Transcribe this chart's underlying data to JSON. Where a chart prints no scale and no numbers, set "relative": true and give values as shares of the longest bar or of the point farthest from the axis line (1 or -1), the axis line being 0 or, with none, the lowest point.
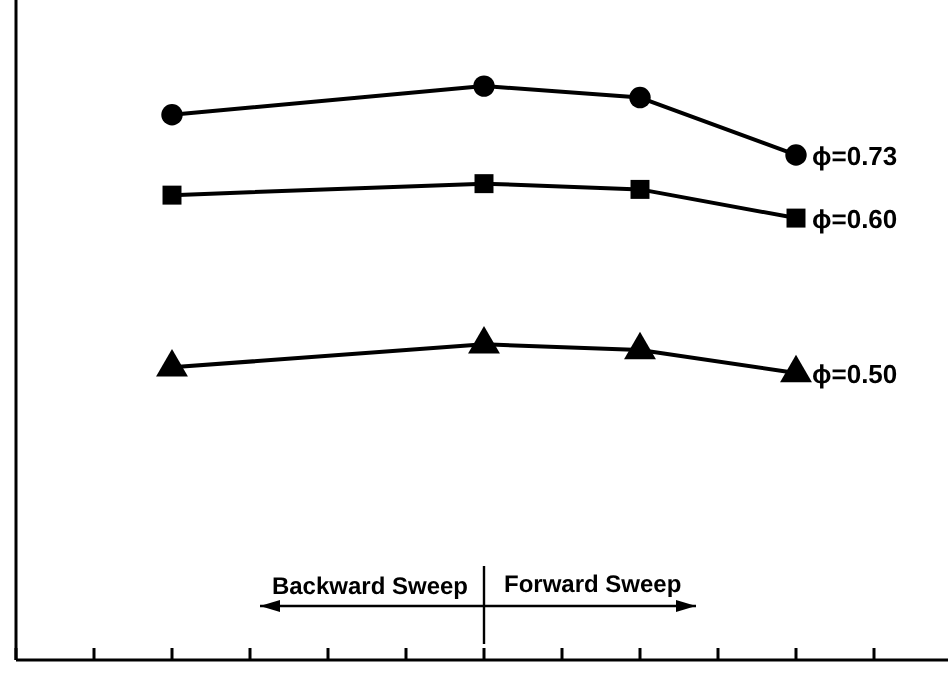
{
  "chart_data": {
    "type": "line",
    "relative": true,
    "categories": [
      null,
      null,
      null,
      null,
      null,
      null,
      null,
      null,
      null,
      null,
      null,
      null,
      null
    ],
    "series": [
      {
        "name": "ϕ=0.73",
        "color": "#000000",
        "marker": "circle",
        "values": [
          null,
          null,
          0.95,
          null,
          null,
          null,
          1,
          null,
          0.98,
          null,
          0.88,
          null,
          null
        ]
      },
      {
        "name": "ϕ=0.60",
        "color": "#000000",
        "marker": "square",
        "values": [
          null,
          null,
          0.81,
          null,
          null,
          null,
          0.83,
          null,
          0.82,
          null,
          0.77,
          null,
          null
        ]
      },
      {
        "name": "ϕ=0.50",
        "color": "#000000",
        "marker": "triangle",
        "values": [
          null,
          null,
          0.51,
          null,
          null,
          null,
          0.55,
          null,
          0.54,
          null,
          0.5,
          null,
          null
        ]
      }
    ],
    "annotations": [
      "Backward Sweep",
      "Forward Sweep"
    ]
  }
}
